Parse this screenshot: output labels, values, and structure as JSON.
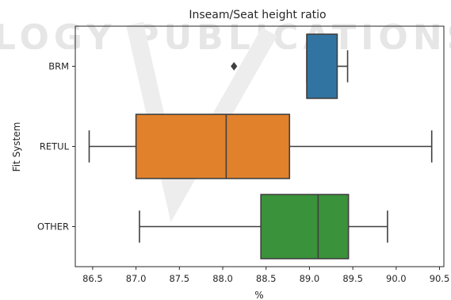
{
  "watermark": {
    "text": "LOGY PUBLICATIONS"
  },
  "chart_data": {
    "type": "box",
    "orientation": "horizontal",
    "title": "Inseam/Seat height ratio",
    "xlabel": "%",
    "ylabel": "Fit System",
    "xlim": [
      86.3,
      90.55
    ],
    "xticks": [
      "86.5",
      "87.0",
      "87.5",
      "88.0",
      "88.5",
      "89.0",
      "89.5",
      "90.0",
      "90.5"
    ],
    "xtick_values": [
      86.5,
      87.0,
      87.5,
      88.0,
      88.5,
      89.0,
      89.5,
      90.0,
      90.5
    ],
    "grid": false,
    "categories": [
      "BRM",
      "RETUL",
      "OTHER"
    ],
    "boxes": [
      {
        "category": "BRM",
        "color": "#3274a1",
        "whisker_low": 88.97,
        "q1": 88.97,
        "median": 88.97,
        "q3": 89.32,
        "whisker_high": 89.44,
        "outliers": [
          88.13
        ]
      },
      {
        "category": "RETUL",
        "color": "#e1812c",
        "whisker_low": 86.46,
        "q1": 87.0,
        "median": 88.04,
        "q3": 88.77,
        "whisker_high": 90.41,
        "outliers": []
      },
      {
        "category": "OTHER",
        "color": "#3a923a",
        "whisker_low": 87.04,
        "q1": 88.44,
        "median": 89.1,
        "q3": 89.45,
        "whisker_high": 89.9,
        "outliers": []
      }
    ]
  }
}
